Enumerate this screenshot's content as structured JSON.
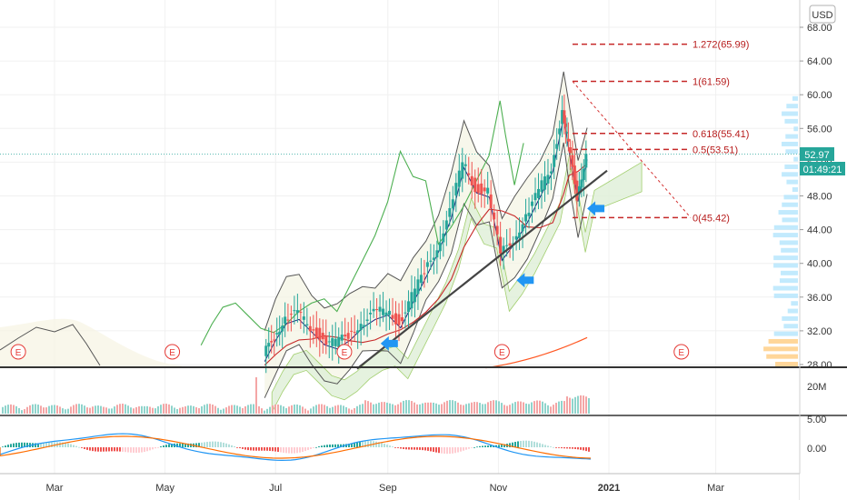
{
  "chart_data": {
    "type": "candlestick",
    "currency": "USD",
    "y_axis": {
      "ticks": [
        28,
        32,
        36,
        40,
        44,
        48,
        52,
        56,
        60,
        64,
        68
      ],
      "tick_labels": [
        "28.00",
        "32.00",
        "36.00",
        "40.00",
        "44.00",
        "48.00",
        "52.00",
        "56.00",
        "60.00",
        "64.00",
        "68.00"
      ],
      "range": [
        27.9,
        71.5
      ]
    },
    "x_axis": {
      "tick_labels": [
        "Mar",
        "May",
        "Jul",
        "Sep",
        "Nov",
        "2021",
        "Mar"
      ],
      "tick_dates": [
        "2020-03-01",
        "2020-05-01",
        "2020-07-01",
        "2020-09-01",
        "2020-11-01",
        "2021-01-01",
        "2021-03-01"
      ]
    },
    "last_price": {
      "value": 52.97,
      "label": "52.97",
      "countdown": "01:49:21"
    },
    "fibonacci": [
      {
        "ratio_label": "1.272",
        "value": 65.99,
        "label": "1.272(65.99)"
      },
      {
        "ratio_label": "1",
        "value": 61.59,
        "label": "1(61.59)"
      },
      {
        "ratio_label": "0.618",
        "value": 55.41,
        "label": "0.618(55.41)"
      },
      {
        "ratio_label": "0.5",
        "value": 53.51,
        "label": "0.5(53.51)"
      },
      {
        "ratio_label": "0",
        "value": 45.42,
        "label": "0(45.42)"
      }
    ],
    "trendline": {
      "from": {
        "date": "2020-08-15",
        "price": 27.5
      },
      "to": {
        "date": "2020-12-31",
        "price": 51.0
      }
    },
    "earnings_markers": {
      "label": "E",
      "dates": [
        "2020-02-10",
        "2020-05-05",
        "2020-08-08",
        "2020-11-03",
        "2021-02-10"
      ]
    },
    "arrows_at": [
      {
        "date": "2020-08-28",
        "price": 30.5
      },
      {
        "date": "2020-11-11",
        "price": 38.0
      },
      {
        "date": "2020-12-20",
        "price": 46.5
      }
    ],
    "volume": {
      "tick_labels": [
        "20M"
      ],
      "ticks": [
        20
      ]
    },
    "macd": {
      "tick_labels": [
        "5.00",
        "0.00"
      ],
      "ticks": [
        5,
        0
      ]
    },
    "price_series": [
      {
        "date": "2020-06-25",
        "close": 29.0
      },
      {
        "date": "2020-07-01",
        "close": 31.5
      },
      {
        "date": "2020-07-07",
        "close": 33.5
      },
      {
        "date": "2020-07-14",
        "close": 34.0
      },
      {
        "date": "2020-07-21",
        "close": 32.5
      },
      {
        "date": "2020-07-28",
        "close": 31.0
      },
      {
        "date": "2020-08-04",
        "close": 30.5
      },
      {
        "date": "2020-08-11",
        "close": 31.5
      },
      {
        "date": "2020-08-18",
        "close": 33.0
      },
      {
        "date": "2020-08-25",
        "close": 34.0
      },
      {
        "date": "2020-09-01",
        "close": 34.5
      },
      {
        "date": "2020-09-08",
        "close": 33.0
      },
      {
        "date": "2020-09-15",
        "close": 36.0
      },
      {
        "date": "2020-09-22",
        "close": 39.0
      },
      {
        "date": "2020-09-29",
        "close": 42.0
      },
      {
        "date": "2020-10-06",
        "close": 46.0
      },
      {
        "date": "2020-10-13",
        "close": 52.0
      },
      {
        "date": "2020-10-20",
        "close": 49.0
      },
      {
        "date": "2020-10-27",
        "close": 48.5
      },
      {
        "date": "2020-11-03",
        "close": 41.0
      },
      {
        "date": "2020-11-10",
        "close": 43.0
      },
      {
        "date": "2020-11-17",
        "close": 45.5
      },
      {
        "date": "2020-11-24",
        "close": 48.5
      },
      {
        "date": "2020-12-01",
        "close": 51.5
      },
      {
        "date": "2020-12-07",
        "close": 58.0
      },
      {
        "date": "2020-12-10",
        "close": 54.0
      },
      {
        "date": "2020-12-15",
        "close": 48.0
      },
      {
        "date": "2020-12-20",
        "close": 52.97
      }
    ]
  }
}
